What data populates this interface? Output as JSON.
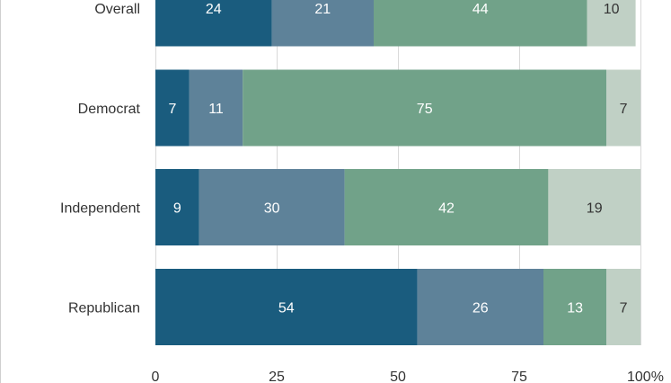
{
  "chart_data": {
    "type": "bar",
    "orientation": "horizontal",
    "stacked": true,
    "title": "",
    "xlabel": "",
    "ylabel": "",
    "categories": [
      "Overall",
      "Democrat",
      "Independent",
      "Republican"
    ],
    "series": [
      {
        "values": [
          24,
          7,
          9,
          54
        ],
        "color": "#1a5c7e",
        "label_color": "#ffffff"
      },
      {
        "values": [
          21,
          11,
          30,
          26
        ],
        "color": "#5e8299",
        "label_color": "#ffffff"
      },
      {
        "values": [
          44,
          75,
          42,
          13
        ],
        "color": "#71a289",
        "label_color": "#ffffff"
      },
      {
        "values": [
          10,
          7,
          19,
          7
        ],
        "color": "#c0d0c5",
        "label_color": "#333333"
      }
    ],
    "xlim": [
      0,
      100
    ],
    "xticks": [
      0,
      25,
      50,
      75,
      100
    ],
    "xtick_labels": [
      "0",
      "25",
      "50",
      "75",
      "100%"
    ],
    "grid": true,
    "legend": "none"
  }
}
